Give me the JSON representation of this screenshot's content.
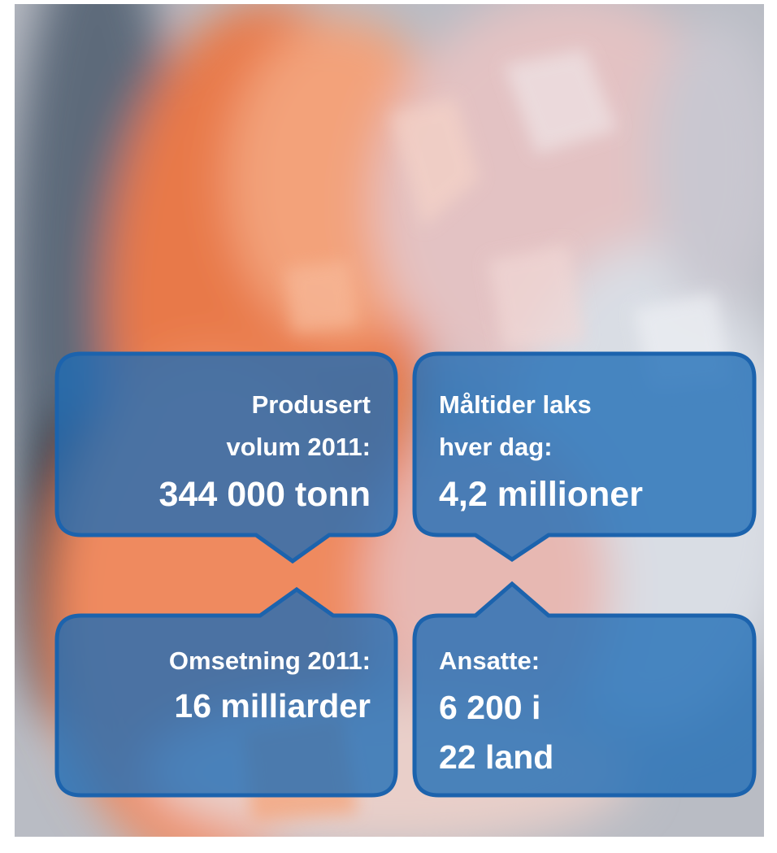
{
  "callouts": [
    {
      "label_lines": [
        "Produsert",
        "volum 2011:"
      ],
      "value_lines": [
        "344 000 tonn"
      ]
    },
    {
      "label_lines": [
        "Måltider laks",
        "hver dag:"
      ],
      "value_lines": [
        "4,2 millioner"
      ]
    },
    {
      "label_lines": [
        "Omsetning 2011:"
      ],
      "value_lines": [
        "16 milliarder"
      ]
    },
    {
      "label_lines": [
        "Ansatte:"
      ],
      "value_lines": [
        "6 200 i",
        "22 land"
      ]
    }
  ]
}
